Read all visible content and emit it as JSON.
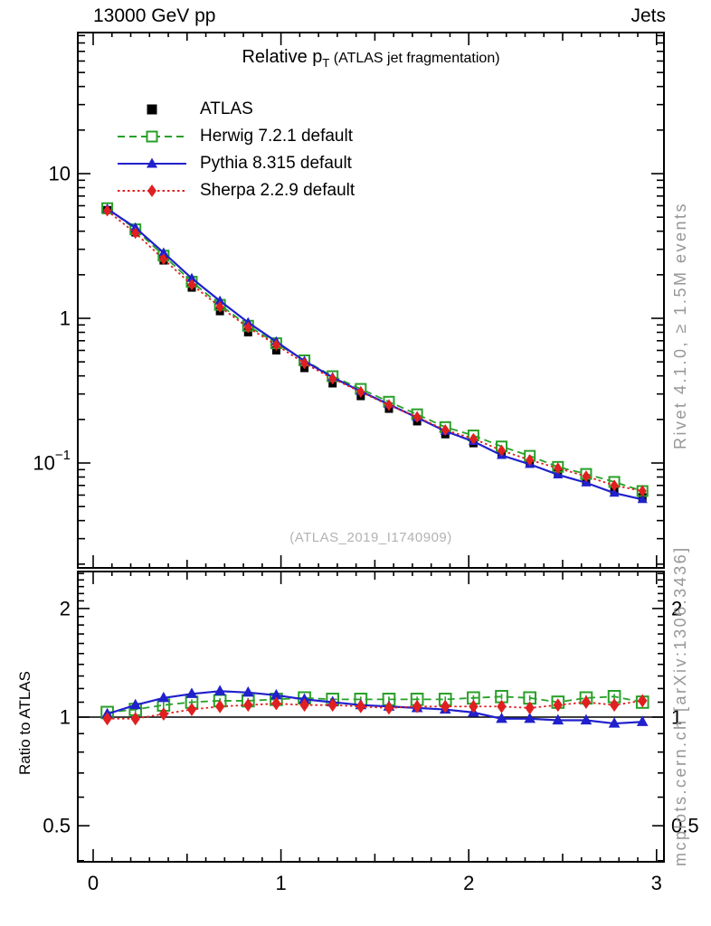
{
  "header": {
    "left_title": "13000 GeV pp",
    "right_title": "Jets"
  },
  "titles": {
    "plot_title_main": "Relative p",
    "plot_title_sub": "T",
    "plot_title_tail": " (ATLAS jet fragmentation)",
    "watermark": "(ATLAS_2019_I1740909)",
    "side_note_top": "Rivet 4.1.0, ≥ 1.5M events",
    "side_note_bottom": "mcplots.cern.ch [arXiv:1306.3436]",
    "ratio_axis_label": "Ratio to ATLAS"
  },
  "colors": {
    "atlas": "#000000",
    "herwig": "#28a028",
    "pythia": "#2020cc",
    "sherpa": "#e02020",
    "gray_text": "#979797",
    "watermark_gray": "#b3b3b3"
  },
  "legend": {
    "items": [
      {
        "label": "ATLAS",
        "color": "#000000",
        "line": "none",
        "marker": "filled-square"
      },
      {
        "label": "Herwig 7.2.1 default",
        "color": "#28a028",
        "line": "dashed",
        "marker": "open-square"
      },
      {
        "label": "Pythia 8.315 default",
        "color": "#2020cc",
        "line": "solid",
        "marker": "triangle"
      },
      {
        "label": "Sherpa 2.2.9 default",
        "color": "#e02020",
        "line": "dotted",
        "marker": "diamond"
      }
    ]
  },
  "chart_data": [
    {
      "type": "line",
      "panel": "main",
      "title": "Relative pT (ATLAS jet fragmentation)",
      "x_scale": "linear",
      "y_scale": "log",
      "xlim": [
        -0.08,
        3.04
      ],
      "ylim": [
        0.019,
        94
      ],
      "grid": false,
      "legend_position": "top-left",
      "y_tick_labels": [
        {
          "v": 10,
          "t": "10"
        },
        {
          "v": 1,
          "t": "1"
        },
        {
          "v": 0.1,
          "t": "10",
          "sup": "−1"
        }
      ],
      "x": [
        0.075,
        0.225,
        0.375,
        0.525,
        0.675,
        0.825,
        0.975,
        1.125,
        1.275,
        1.425,
        1.575,
        1.725,
        1.875,
        2.025,
        2.175,
        2.325,
        2.475,
        2.625,
        2.775,
        2.925
      ],
      "series": [
        {
          "name": "ATLAS",
          "color": "#000000",
          "line": "none",
          "marker": "filled-square",
          "values": [
            5.6,
            3.92,
            2.51,
            1.63,
            1.12,
            0.8,
            0.6,
            0.453,
            0.355,
            0.29,
            0.237,
            0.194,
            0.158,
            0.137,
            0.114,
            0.099,
            0.085,
            0.074,
            0.065,
            0.058
          ]
        },
        {
          "name": "Herwig 7.2.1 default",
          "color": "#28a028",
          "line": "dashed",
          "marker": "open-square",
          "values": [
            5.77,
            4.12,
            2.71,
            1.79,
            1.24,
            0.888,
            0.672,
            0.512,
            0.398,
            0.325,
            0.265,
            0.217,
            0.177,
            0.155,
            0.13,
            0.112,
            0.094,
            0.084,
            0.074,
            0.064
          ]
        },
        {
          "name": "Pythia 8.315 default",
          "color": "#2020cc",
          "line": "solid",
          "marker": "triangle",
          "values": [
            5.71,
            4.23,
            2.84,
            1.89,
            1.32,
            0.936,
            0.69,
            0.507,
            0.391,
            0.313,
            0.254,
            0.206,
            0.166,
            0.141,
            0.113,
            0.098,
            0.083,
            0.073,
            0.062,
            0.056
          ]
        },
        {
          "name": "Sherpa 2.2.9 default",
          "color": "#e02020",
          "line": "dotted",
          "marker": "diamond",
          "values": [
            5.54,
            3.88,
            2.56,
            1.71,
            1.2,
            0.864,
            0.654,
            0.489,
            0.383,
            0.31,
            0.251,
            0.208,
            0.169,
            0.147,
            0.122,
            0.105,
            0.092,
            0.081,
            0.07,
            0.064
          ]
        }
      ]
    },
    {
      "type": "line",
      "panel": "ratio",
      "ylabel": "Ratio to ATLAS",
      "x_scale": "linear",
      "y_scale": "log",
      "xlim": [
        -0.08,
        3.04
      ],
      "ylim": [
        0.4,
        2.53
      ],
      "baseline": 1,
      "x_tick_labels": [
        {
          "v": 0,
          "t": "0"
        },
        {
          "v": 1,
          "t": "1"
        },
        {
          "v": 2,
          "t": "2"
        },
        {
          "v": 3,
          "t": "3"
        }
      ],
      "y_tick_labels": [
        {
          "v": 2,
          "t": "2"
        },
        {
          "v": 1,
          "t": "1"
        },
        {
          "v": 0.5,
          "t": "0.5"
        }
      ],
      "x": [
        0.075,
        0.225,
        0.375,
        0.525,
        0.675,
        0.825,
        0.975,
        1.125,
        1.275,
        1.425,
        1.575,
        1.725,
        1.875,
        2.025,
        2.175,
        2.325,
        2.475,
        2.625,
        2.775,
        2.925
      ],
      "series": [
        {
          "name": "Herwig 7.2.1 default",
          "color": "#28a028",
          "line": "dashed",
          "marker": "open-square",
          "err": 0.02,
          "values": [
            1.03,
            1.05,
            1.08,
            1.1,
            1.11,
            1.11,
            1.12,
            1.13,
            1.12,
            1.12,
            1.12,
            1.12,
            1.12,
            1.13,
            1.14,
            1.13,
            1.1,
            1.13,
            1.14,
            1.1
          ]
        },
        {
          "name": "Pythia 8.315 default",
          "color": "#2020cc",
          "line": "solid",
          "marker": "triangle",
          "err": 0,
          "values": [
            1.02,
            1.08,
            1.13,
            1.16,
            1.18,
            1.17,
            1.15,
            1.12,
            1.1,
            1.08,
            1.07,
            1.06,
            1.05,
            1.03,
            0.99,
            0.99,
            0.98,
            0.98,
            0.96,
            0.97
          ]
        },
        {
          "name": "Sherpa 2.2.9 default",
          "color": "#e02020",
          "line": "dotted",
          "marker": "diamond",
          "err": 0.035,
          "values": [
            0.99,
            0.99,
            1.02,
            1.05,
            1.07,
            1.08,
            1.09,
            1.08,
            1.08,
            1.07,
            1.06,
            1.07,
            1.07,
            1.07,
            1.07,
            1.06,
            1.08,
            1.1,
            1.08,
            1.11
          ]
        }
      ]
    }
  ]
}
